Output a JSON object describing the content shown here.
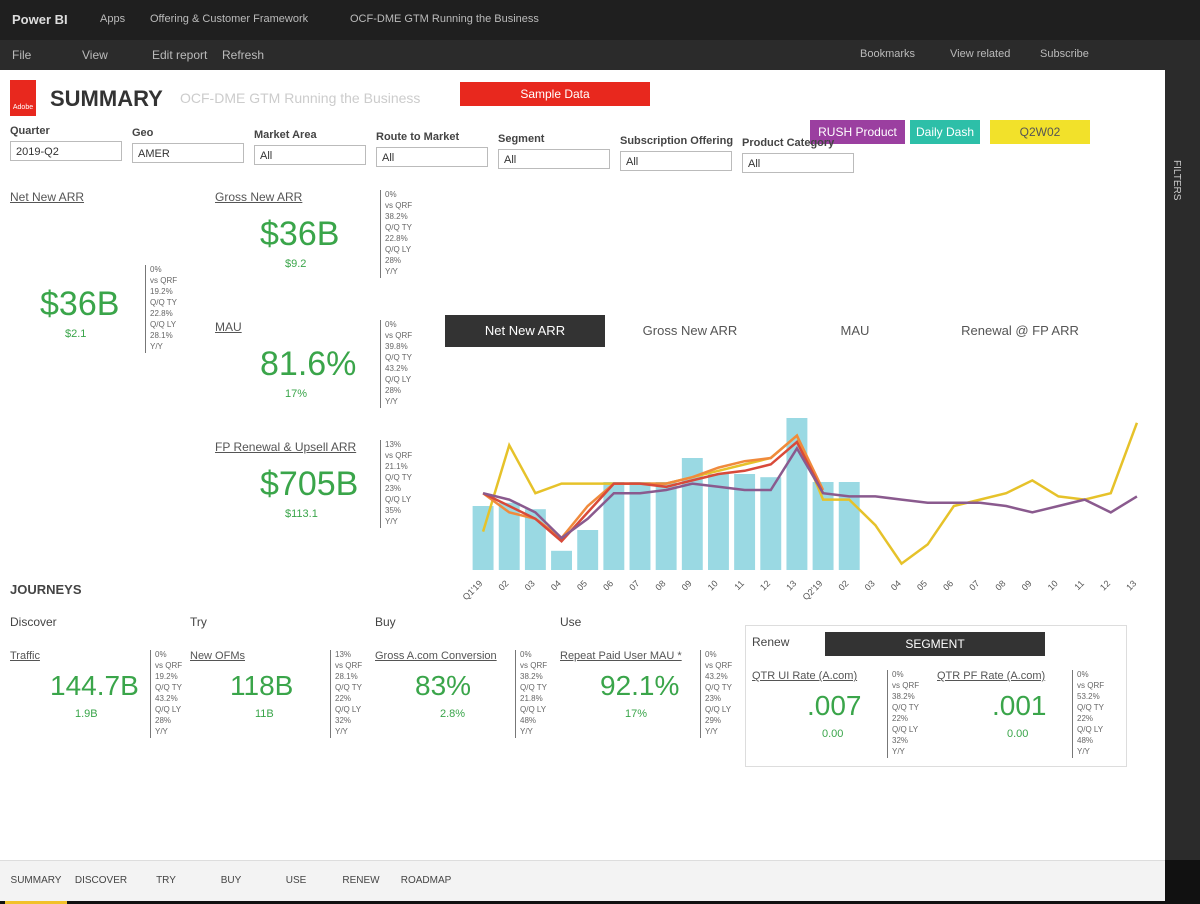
{
  "app": {
    "brand": "Power BI",
    "breadcrumb": [
      "Apps",
      "Offering & Customer Framework",
      "OCF-DME GTM Running the Business"
    ],
    "toolbar": [
      "File",
      "View",
      "Edit report",
      "Refresh"
    ],
    "actions": [
      "Bookmarks",
      "View related",
      "Subscribe"
    ],
    "side": "FILTERS"
  },
  "header": {
    "logo": "Adobe",
    "title": "SUMMARY",
    "subtitle": "OCF-DME GTM Running the Business"
  },
  "buttons": [
    {
      "label": "Sample Data",
      "color": "#e8281e"
    },
    {
      "label": "RUSH Product Dash",
      "color": "#9b3fa0"
    },
    {
      "label": "Daily Dash",
      "color": "#2dbfa8"
    },
    {
      "label": "Q2W02",
      "color": "#f2e12a"
    }
  ],
  "filters": [
    {
      "label": "Quarter",
      "value": "2019-Q2"
    },
    {
      "label": "Geo",
      "value": "AMER"
    },
    {
      "label": "Market Area",
      "value": "All"
    },
    {
      "label": "Route to Market",
      "value": "All"
    },
    {
      "label": "Segment",
      "value": "All"
    },
    {
      "label": "Subscription Offering",
      "value": "All"
    },
    {
      "label": "Product Category",
      "value": "All"
    }
  ],
  "kpis": [
    {
      "title": "Net New ARR",
      "value": "$36B",
      "sub": "$2.1",
      "stats": [
        "0%",
        "vs QRF",
        "19.2%",
        "Q/Q TY",
        "22.8%",
        "Q/Q LY",
        "28.1%",
        "Y/Y"
      ]
    },
    {
      "title": "Gross New ARR",
      "value": "$36B",
      "sub": "$9.2",
      "stats": [
        "0%",
        "vs QRF",
        "38.2%",
        "Q/Q TY",
        "22.8%",
        "Q/Q LY",
        "28%",
        "Y/Y"
      ]
    },
    {
      "title": "MAU",
      "value": "81.6%",
      "sub": "17%",
      "stats": [
        "0%",
        "vs QRF",
        "39.8%",
        "Q/Q TY",
        "43.2%",
        "Q/Q LY",
        "28%",
        "Y/Y"
      ]
    },
    {
      "title": "FP Renewal & Upsell ARR",
      "value": "$705B",
      "sub": "$113.1",
      "stats": [
        "13%",
        "vs QRF",
        "21.1%",
        "Q/Q TY",
        "23%",
        "Q/Q LY",
        "35%",
        "Y/Y"
      ]
    }
  ],
  "chart": {
    "type": "bar-line",
    "tabs": [
      "Net New ARR",
      "Gross New ARR",
      "MAU",
      "Renewal @ FP ARR"
    ],
    "x": [
      "Q1'19",
      "02",
      "03",
      "04",
      "05",
      "06",
      "07",
      "08",
      "09",
      "10",
      "11",
      "12",
      "13",
      "Q2'19",
      "02",
      "03",
      "04",
      "05",
      "06",
      "07",
      "08",
      "09",
      "10",
      "11",
      "12",
      "13"
    ],
    "ylim": [
      0,
      100
    ],
    "bars": {
      "color": "#9ad9e3",
      "values": [
        40,
        42,
        38,
        12,
        25,
        55,
        55,
        55,
        70,
        60,
        60,
        58,
        95,
        55,
        55,
        null,
        null,
        null,
        null,
        null,
        null,
        null,
        null,
        null,
        null,
        null
      ]
    },
    "series": [
      {
        "color": "#e6c22a",
        "values": [
          24,
          78,
          48,
          54,
          54,
          54,
          54,
          54,
          58,
          62,
          66,
          70,
          84,
          44,
          44,
          28,
          4,
          16,
          40,
          44,
          48,
          56,
          46,
          44,
          48,
          92
        ]
      },
      {
        "color": "#f08a3c",
        "values": [
          48,
          36,
          32,
          20,
          40,
          54,
          54,
          54,
          58,
          64,
          68,
          70,
          84,
          50,
          null,
          null,
          null,
          null,
          null,
          null,
          null,
          null,
          null,
          null,
          null,
          null
        ]
      },
      {
        "color": "#d84a3a",
        "values": [
          48,
          40,
          32,
          18,
          36,
          54,
          54,
          52,
          56,
          60,
          62,
          66,
          80,
          48,
          null,
          null,
          null,
          null,
          null,
          null,
          null,
          null,
          null,
          null,
          null,
          null
        ]
      },
      {
        "color": "#8a5a8e",
        "values": [
          48,
          44,
          36,
          20,
          32,
          48,
          48,
          50,
          54,
          52,
          50,
          50,
          76,
          48,
          46,
          46,
          44,
          42,
          42,
          42,
          40,
          36,
          40,
          44,
          36,
          46
        ]
      }
    ]
  },
  "journeys": {
    "title": "JOURNEYS",
    "sections": [
      {
        "name": "Discover",
        "title": "Traffic",
        "value": "144.7B",
        "sub": "1.9B",
        "stats": [
          "0%",
          "vs QRF",
          "19.2%",
          "Q/Q TY",
          "43.2%",
          "Q/Q LY",
          "28%",
          "Y/Y"
        ]
      },
      {
        "name": "Try",
        "title": "New OFMs",
        "value": "118B",
        "sub": "11B",
        "stats": [
          "13%",
          "vs QRF",
          "28.1%",
          "Q/Q TY",
          "22%",
          "Q/Q LY",
          "32%",
          "Y/Y"
        ]
      },
      {
        "name": "Buy",
        "title": "Gross A.com Conversion",
        "value": "83%",
        "sub": "2.8%",
        "stats": [
          "0%",
          "vs QRF",
          "38.2%",
          "Q/Q TY",
          "21.8%",
          "Q/Q LY",
          "48%",
          "Y/Y"
        ]
      },
      {
        "name": "Use",
        "title": "Repeat Paid User MAU *",
        "value": "92.1%",
        "sub": "17%",
        "stats": [
          "0%",
          "vs QRF",
          "43.2%",
          "Q/Q TY",
          "23%",
          "Q/Q LY",
          "29%",
          "Y/Y"
        ]
      }
    ],
    "renew": {
      "name": "Renew",
      "button": "SEGMENT",
      "items": [
        {
          "title": "QTR UI Rate (A.com)",
          "value": ".007",
          "sub": "0.00",
          "stats": [
            "0%",
            "vs QRF",
            "38.2%",
            "Q/Q TY",
            "22%",
            "Q/Q LY",
            "32%",
            "Y/Y"
          ]
        },
        {
          "title": "QTR PF Rate (A.com)",
          "value": ".001",
          "sub": "0.00",
          "stats": [
            "0%",
            "vs QRF",
            "53.2%",
            "Q/Q TY",
            "22%",
            "Q/Q LY",
            "48%",
            "Y/Y"
          ]
        }
      ]
    }
  },
  "tabs": [
    "SUMMARY",
    "DISCOVER",
    "TRY",
    "BUY",
    "USE",
    "RENEW",
    "ROADMAP"
  ]
}
